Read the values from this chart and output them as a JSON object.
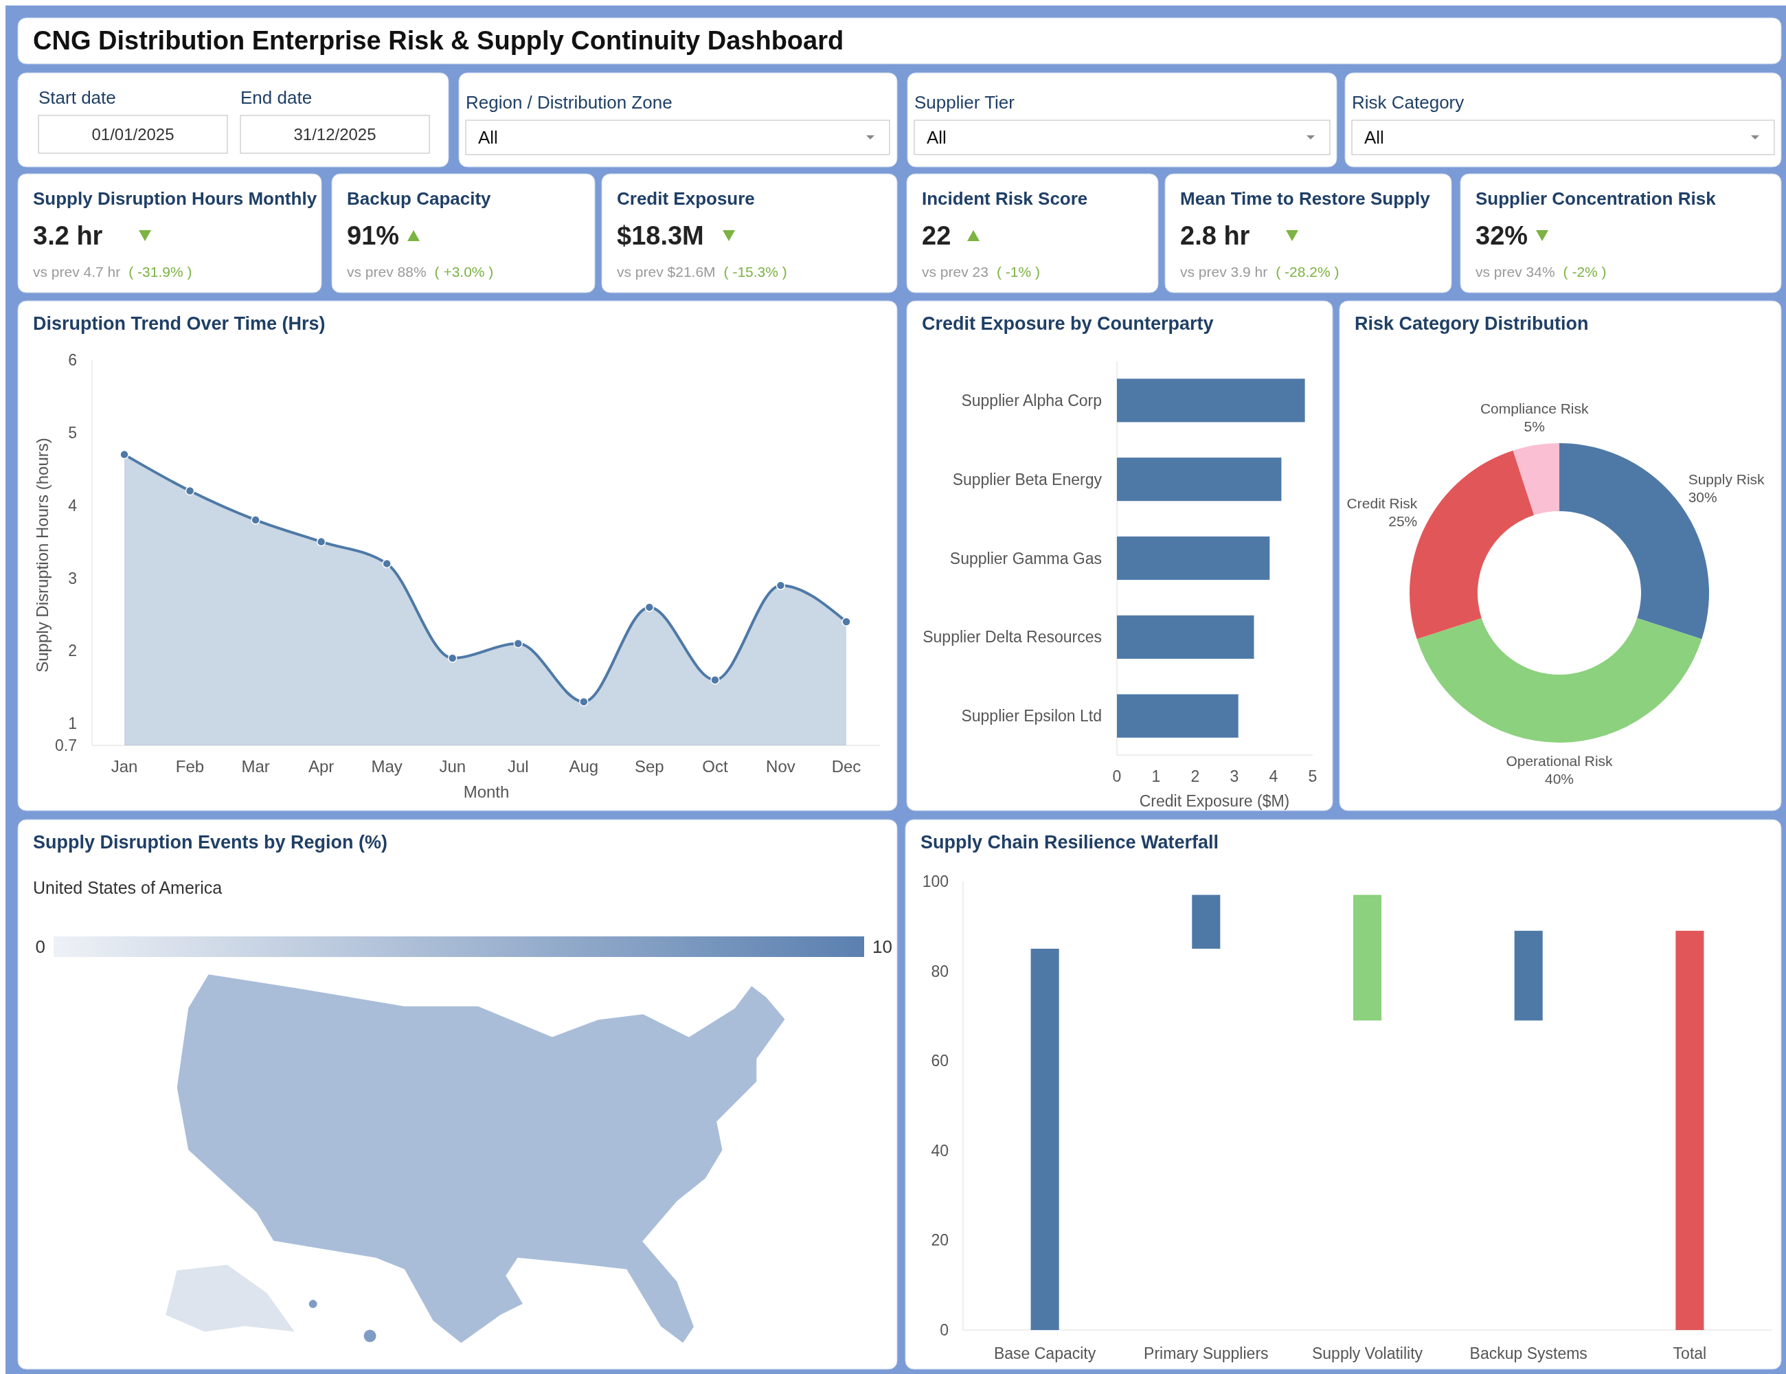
{
  "chart_data": [
    {
      "type": "other",
      "title": "CNG Distribution Enterprise Risk & Supply Continuity Dashboard",
      "annotations": [
        "Start date",
        "01/01/2025",
        "End date",
        "31/12/2025",
        "Region / Distribution Zone",
        "All",
        "Supplier Tier",
        "All",
        "Risk Category",
        "All"
      ]
    },
    {
      "type": "other",
      "title": "Supply Disruption Hours Monthly",
      "annotations": [
        "3.2 hr",
        "vs prev 4.7 hr",
        "( -31.9% )"
      ]
    },
    {
      "type": "other",
      "title": "Backup Capacity",
      "annotations": [
        "91%",
        "vs prev 88%",
        "( +3.0% )"
      ]
    },
    {
      "type": "other",
      "title": "Credit Exposure",
      "annotations": [
        "$18.3M",
        "vs prev $21.6M",
        "( -15.3% )"
      ]
    },
    {
      "type": "other",
      "title": "Incident Risk Score",
      "annotations": [
        "22",
        "vs prev 23",
        "( -1% )"
      ]
    },
    {
      "type": "other",
      "title": "Mean Time to Restore Supply",
      "annotations": [
        "2.8 hr",
        "vs prev 3.9 hr",
        "( -28.2% )"
      ]
    },
    {
      "type": "other",
      "title": "Supplier Concentration Risk",
      "annotations": [
        "32%",
        "vs prev 34%",
        "( -2% )"
      ]
    },
    {
      "type": "area",
      "title": "Disruption Trend Over Time (Hrs)",
      "xlabel": "Month",
      "ylabel": "Supply Disruption Hours (hours)",
      "categories": [
        "Jan",
        "Feb",
        "Mar",
        "Apr",
        "May",
        "Jun",
        "Jul",
        "Aug",
        "Sep",
        "Oct",
        "Nov",
        "Dec"
      ],
      "values": [
        4.7,
        4.2,
        3.8,
        3.5,
        3.2,
        1.9,
        2.1,
        1.3,
        2.6,
        1.6,
        2.9,
        2.4
      ],
      "color": "#4e79a7",
      "ylim": [
        0.7,
        6
      ],
      "yticks": [
        0.7,
        1,
        2,
        3,
        4,
        5,
        6
      ],
      "marker": "circle",
      "grid": false,
      "legend": false
    },
    {
      "type": "bar",
      "orientation": "horizontal",
      "title": "Credit Exposure by Counterparty",
      "xlabel": "Credit Exposure ($M)",
      "categories": [
        "Supplier Alpha Corp",
        "Supplier Beta Energy",
        "Supplier Gamma Gas",
        "Supplier Delta Resources",
        "Supplier Epsilon Ltd"
      ],
      "values": [
        4.8,
        4.2,
        3.9,
        3.5,
        3.1
      ],
      "color": "#4e79a7",
      "xlim": [
        0,
        5
      ],
      "xticks": [
        0,
        1,
        2,
        3,
        4,
        5
      ],
      "grid": false,
      "legend": false
    },
    {
      "type": "donut",
      "title": "Risk Category Distribution",
      "categories": [
        "Supply Risk",
        "Operational Risk",
        "Credit Risk",
        "Compliance Risk"
      ],
      "values": [
        30,
        40,
        25,
        5
      ],
      "colors": [
        "#4e79a7",
        "#8cd17d",
        "#e15759",
        "#fabfd2"
      ],
      "value_labels": [
        "30%",
        "40%",
        "25%",
        "5%"
      ],
      "legend": false
    },
    {
      "type": "other",
      "title": "Supply Disruption Events by Region (%)",
      "subtitle": "United States of America",
      "annotations": [
        "0",
        "10"
      ]
    },
    {
      "type": "bar",
      "title": "Supply Chain Resilience Waterfall",
      "categories": [
        "Base Capacity",
        "Primary Suppliers",
        "Supply Volatility",
        "Backup Systems",
        "Total"
      ],
      "base": [
        0,
        85,
        69,
        69,
        0
      ],
      "values": [
        85,
        12,
        28,
        20,
        89
      ],
      "colors": [
        "#4e79a7",
        "#4e79a7",
        "#8cd17d",
        "#4e79a7",
        "#e15759"
      ],
      "ylim": [
        0,
        100
      ],
      "yticks": [
        0,
        20,
        40,
        60,
        80,
        100
      ],
      "grid": false,
      "legend": false
    }
  ]
}
